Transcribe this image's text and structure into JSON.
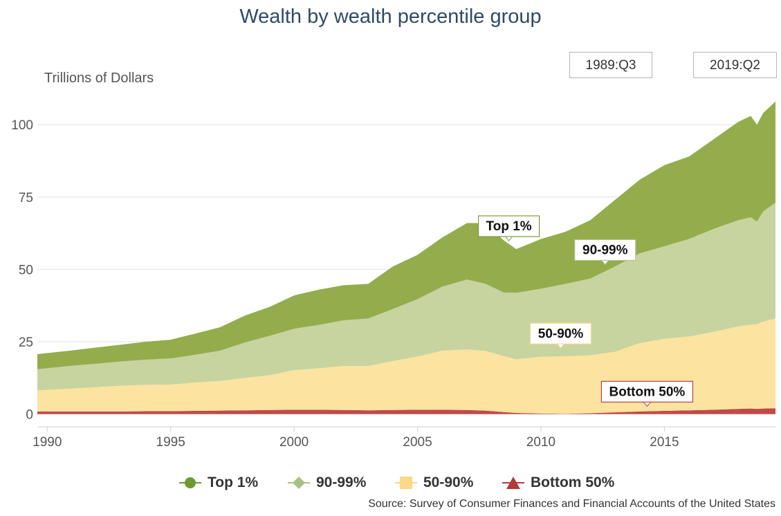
{
  "title": "Wealth by wealth percentile group",
  "range_selector": {
    "start": "1989:Q3",
    "end": "2019:Q2"
  },
  "colors": {
    "top1": "#93ad4c",
    "p90_99": "#c7d4a0",
    "p50_90": "#fde3a0",
    "bottom50": "#c04a4a",
    "legend_top1": "#6e9a2e",
    "legend_p90_99": "#a8c183",
    "legend_p50_90": "#fbd98a",
    "legend_bottom50": "#b33a3a"
  },
  "source": "Source: Survey of Consumer Finances and Financial Accounts of the United States",
  "chart_data": {
    "type": "area",
    "stacked": true,
    "title": "Wealth by wealth percentile group",
    "ylabel": "Trillions of Dollars",
    "xlabel": "",
    "xlim": [
      1989.6,
      2019.5
    ],
    "ylim": [
      -2,
      112
    ],
    "x_ticks": [
      "1990",
      "1995",
      "2000",
      "2005",
      "2010",
      "2015"
    ],
    "y_ticks": [
      "0",
      "25",
      "50",
      "75",
      "100"
    ],
    "legend_position": "bottom",
    "x": [
      1989.6,
      1991,
      1992,
      1993,
      1994,
      1995,
      1996,
      1997,
      1998,
      1999,
      2000,
      2001,
      2002,
      2003,
      2004,
      2005,
      2006,
      2007,
      2007.75,
      2008.5,
      2009,
      2010,
      2011,
      2012,
      2013,
      2014,
      2015,
      2016,
      2017,
      2018,
      2018.5,
      2018.75,
      2019,
      2019.5
    ],
    "series": [
      {
        "name": "Bottom 50%",
        "values": [
          0.9,
          0.9,
          0.9,
          0.9,
          1.0,
          1.0,
          1.1,
          1.2,
          1.3,
          1.4,
          1.5,
          1.5,
          1.4,
          1.3,
          1.4,
          1.5,
          1.5,
          1.4,
          1.2,
          0.7,
          0.4,
          0.2,
          0.1,
          0.3,
          0.6,
          0.9,
          1.1,
          1.3,
          1.5,
          1.8,
          1.9,
          1.8,
          1.9,
          2.0
        ]
      },
      {
        "name": "50-90%",
        "values": [
          7.3,
          7.9,
          8.4,
          8.9,
          9.1,
          9.2,
          9.8,
          10.2,
          11.2,
          12.0,
          13.7,
          14.3,
          15.2,
          15.3,
          16.9,
          18.4,
          20.4,
          20.9,
          20.6,
          19.3,
          18.5,
          19.6,
          19.9,
          20.0,
          20.9,
          23.6,
          24.9,
          25.5,
          26.9,
          28.5,
          29.0,
          29.2,
          30.1,
          31.0
        ]
      },
      {
        "name": "90-99%",
        "values": [
          7.3,
          7.9,
          8.1,
          8.4,
          8.7,
          9.0,
          9.6,
          10.5,
          12.2,
          13.6,
          14.3,
          15.0,
          15.8,
          16.4,
          18.0,
          19.8,
          22.1,
          24.2,
          23.2,
          22.0,
          23.0,
          23.5,
          25.0,
          26.5,
          29.5,
          31.0,
          32.0,
          33.7,
          35.6,
          36.7,
          37.1,
          35.5,
          38.0,
          40.0
        ]
      },
      {
        "name": "Top 1%",
        "values": [
          5.2,
          5.3,
          5.6,
          5.8,
          6.2,
          6.5,
          7.3,
          8.1,
          9.3,
          10.0,
          11.5,
          12.2,
          12.1,
          12.0,
          14.7,
          15.3,
          17.0,
          19.5,
          21.0,
          18.0,
          15.1,
          17.2,
          18.0,
          20.2,
          23.0,
          25.5,
          28.0,
          28.5,
          31.0,
          34.0,
          35.0,
          33.5,
          34.0,
          35.0
        ]
      }
    ],
    "annotations": [
      {
        "label": "Top 1%",
        "x": 2008.7,
        "y": 57.5
      },
      {
        "label": "90-99%",
        "x": 2012.6,
        "y": 48.8
      },
      {
        "label": "50-90%",
        "x": 2010.8,
        "y": 20.4
      },
      {
        "label": "Bottom 50%",
        "x": 2014.3,
        "y": 0.8
      }
    ]
  }
}
